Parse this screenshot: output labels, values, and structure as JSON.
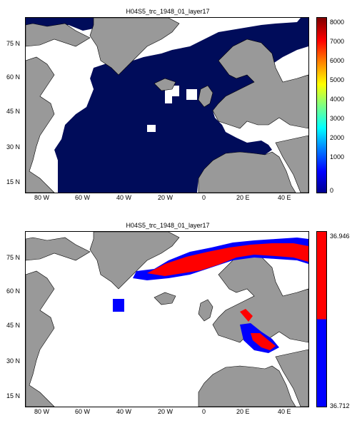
{
  "panels": [
    {
      "title": "H04S5_trc_1948_01_layer17",
      "lat_labels": [
        "75 N",
        "60 N",
        "45 N",
        "30 N",
        "15 N"
      ],
      "lon_labels": [
        "80 W",
        "60 W",
        "40 W",
        "20 W",
        "0",
        "20 E",
        "40 E"
      ],
      "colorbar": {
        "ticks": [
          "8000",
          "7000",
          "6000",
          "5000",
          "4000",
          "3000",
          "2000",
          "1000",
          "0"
        ],
        "range": [
          0,
          8000
        ],
        "colormap": "jet"
      },
      "colors": {
        "ocean_field": "#000c5a",
        "land": "#999999",
        "no_data": "#ffffff"
      }
    },
    {
      "title": "H04S5_trc_1948_01_layer17",
      "lat_labels": [
        "75 N",
        "60 N",
        "45 N",
        "30 N",
        "15 N"
      ],
      "lon_labels": [
        "80 W",
        "60 W",
        "40 W",
        "20 W",
        "0",
        "20 E",
        "40 E"
      ],
      "colorbar": {
        "ticks": [
          "36.946",
          "36.712"
        ],
        "range": [
          36.712,
          36.946
        ],
        "colors": [
          "#ff0000",
          "#0000ff"
        ]
      },
      "colors": {
        "high": "#ff0000",
        "low": "#0000ff",
        "land": "#999999",
        "no_data": "#ffffff"
      }
    }
  ]
}
